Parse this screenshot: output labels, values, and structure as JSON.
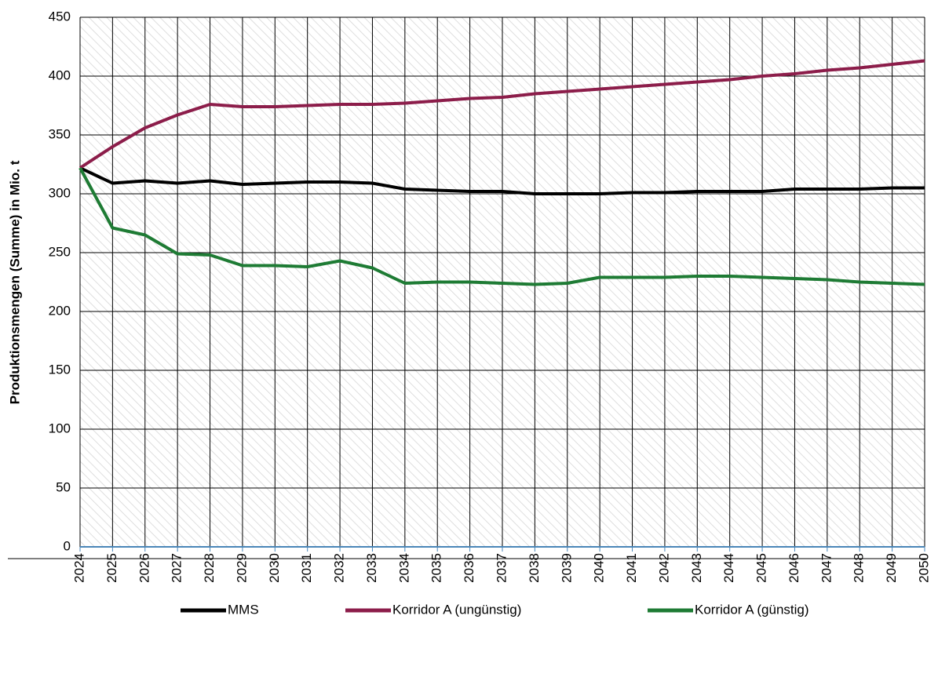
{
  "chart_data": {
    "type": "line",
    "y_label": "Produktionsmengen (Summe) in Mio. t",
    "x": [
      2024,
      2025,
      2026,
      2027,
      2028,
      2029,
      2030,
      2031,
      2032,
      2033,
      2034,
      2035,
      2036,
      2037,
      2038,
      2039,
      2040,
      2041,
      2042,
      2043,
      2044,
      2045,
      2046,
      2047,
      2048,
      2049,
      2050
    ],
    "xlim": [
      2024,
      2050
    ],
    "xticks": [
      2024,
      2025,
      2026,
      2027,
      2028,
      2029,
      2030,
      2031,
      2032,
      2033,
      2034,
      2035,
      2036,
      2037,
      2038,
      2039,
      2040,
      2041,
      2042,
      2043,
      2044,
      2045,
      2046,
      2047,
      2048,
      2049,
      2050
    ],
    "ylim": [
      0,
      450
    ],
    "yticks": [
      0,
      50,
      100,
      150,
      200,
      250,
      300,
      350,
      400,
      450
    ],
    "grid": true,
    "legend": "bottom",
    "series": [
      {
        "name": "MMS",
        "color": "#000000",
        "values": [
          322,
          309,
          311,
          309,
          311,
          308,
          309,
          310,
          310,
          309,
          304,
          303,
          302,
          302,
          300,
          300,
          300,
          301,
          301,
          302,
          302,
          302,
          304,
          304,
          304,
          305,
          305
        ]
      },
      {
        "name": "Korridor A (ungünstig)",
        "color": "#8c1d4a",
        "values": [
          322,
          340,
          356,
          367,
          376,
          374,
          374,
          375,
          376,
          376,
          377,
          379,
          381,
          382,
          385,
          387,
          389,
          391,
          393,
          395,
          397,
          400,
          402,
          405,
          407,
          410,
          413
        ]
      },
      {
        "name": "Korridor A (günstig)",
        "color": "#1e7b34",
        "values": [
          322,
          271,
          265,
          249,
          248,
          239,
          239,
          238,
          243,
          237,
          224,
          225,
          225,
          224,
          223,
          224,
          229,
          229,
          229,
          230,
          230,
          229,
          228,
          227,
          225,
          224,
          223
        ]
      }
    ]
  }
}
